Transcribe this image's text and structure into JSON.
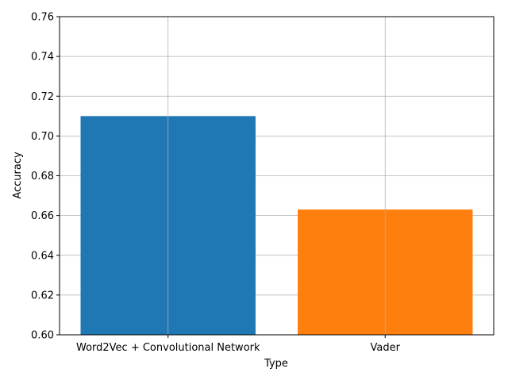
{
  "chart_data": {
    "type": "bar",
    "categories": [
      "Word2Vec + Convolutional Network",
      "Vader"
    ],
    "values": [
      0.71,
      0.663
    ],
    "colors": [
      "#1f77b4",
      "#ff7f0e"
    ],
    "title": "",
    "xlabel": "Type",
    "ylabel": "Accuracy",
    "ylim": [
      0.6,
      0.76
    ],
    "yticks": [
      "0.60",
      "0.62",
      "0.64",
      "0.66",
      "0.68",
      "0.70",
      "0.72",
      "0.74",
      "0.76"
    ],
    "grid": true,
    "legend": "none"
  }
}
